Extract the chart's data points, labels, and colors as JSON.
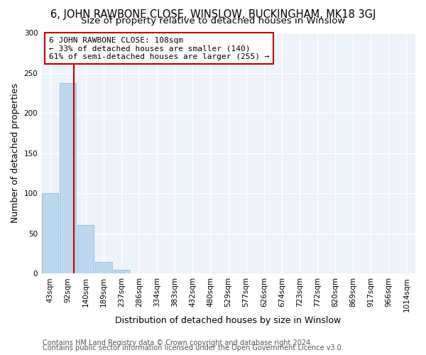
{
  "title": "6, JOHN RAWBONE CLOSE, WINSLOW, BUCKINGHAM, MK18 3GJ",
  "subtitle": "Size of property relative to detached houses in Winslow",
  "xlabel": "Distribution of detached houses by size in Winslow",
  "ylabel": "Number of detached properties",
  "bar_values": [
    100,
    238,
    61,
    15,
    5,
    0,
    0,
    0,
    0,
    0,
    0,
    0,
    0,
    0,
    0,
    0,
    0,
    0,
    0,
    0,
    0
  ],
  "bin_labels": [
    "43sqm",
    "92sqm",
    "140sqm",
    "189sqm",
    "237sqm",
    "286sqm",
    "334sqm",
    "383sqm",
    "432sqm",
    "480sqm",
    "529sqm",
    "577sqm",
    "626sqm",
    "674sqm",
    "723sqm",
    "772sqm",
    "820sqm",
    "869sqm",
    "917sqm",
    "966sqm",
    "1014sqm"
  ],
  "bar_color": "#BDD7EE",
  "bar_edge_color": "#9DC3E6",
  "property_line_color": "#C00000",
  "annotation_line1": "6 JOHN RAWBONE CLOSE: 108sqm",
  "annotation_line2": "← 33% of detached houses are smaller (140)",
  "annotation_line3": "61% of semi-detached houses are larger (255) →",
  "annotation_box_color": "#ffffff",
  "annotation_box_edge_color": "#C00000",
  "ylim": [
    0,
    300
  ],
  "yticks": [
    0,
    50,
    100,
    150,
    200,
    250,
    300
  ],
  "footer_line1": "Contains HM Land Registry data © Crown copyright and database right 2024.",
  "footer_line2": "Contains public sector information licensed under the Open Government Licence v3.0.",
  "background_color": "#ffffff",
  "plot_bg_color": "#EEF3FA",
  "grid_color": "#ffffff",
  "title_fontsize": 10.5,
  "subtitle_fontsize": 9.5,
  "axis_label_fontsize": 9,
  "tick_fontsize": 7.5,
  "annotation_fontsize": 8,
  "footer_fontsize": 7
}
